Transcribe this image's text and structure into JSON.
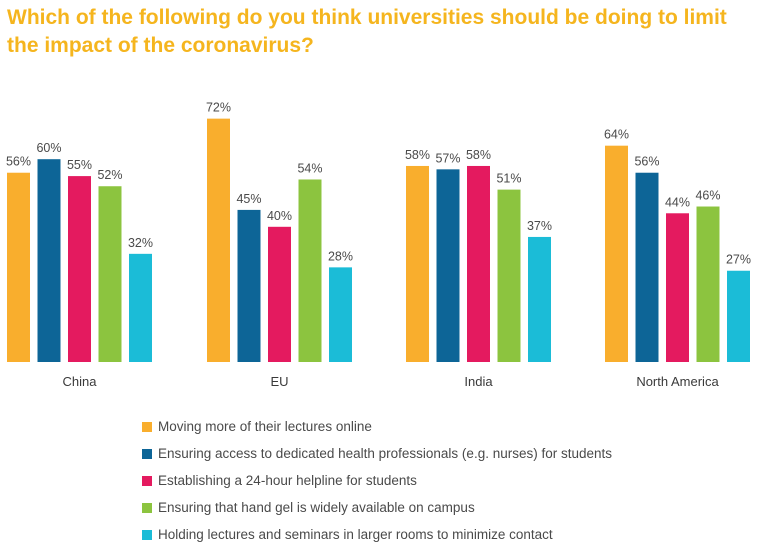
{
  "chart_data": {
    "type": "bar",
    "title": "Which of the following do you think universities should be doing to limit the impact of the coronavirus?",
    "categories": [
      "China",
      "EU",
      "India",
      "North America"
    ],
    "value_suffix": "%",
    "ylim": [
      0,
      72
    ],
    "grid": false,
    "legend_position": "bottom",
    "series": [
      {
        "name": "Moving more of their lectures online",
        "color": "#f9ae2d",
        "values": [
          56,
          72,
          58,
          64
        ]
      },
      {
        "name": "Ensuring access to dedicated health professionals (e.g. nurses) for students",
        "color": "#0d6597",
        "values": [
          60,
          45,
          57,
          56
        ]
      },
      {
        "name": "Establishing a 24-hour helpline for students",
        "color": "#e41a5f",
        "values": [
          55,
          40,
          58,
          44
        ]
      },
      {
        "name": "Ensuring that hand gel is widely available on campus",
        "color": "#8cc43f",
        "values": [
          52,
          54,
          51,
          46
        ]
      },
      {
        "name": "Holding lectures and seminars in larger rooms to minimize contact",
        "color": "#1bbcd7",
        "values": [
          32,
          28,
          37,
          27
        ]
      }
    ]
  }
}
